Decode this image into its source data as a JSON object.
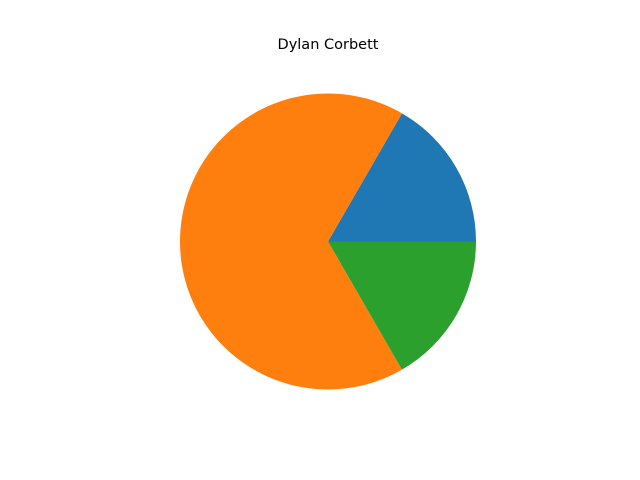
{
  "chart_data": {
    "type": "pie",
    "title": "Dylan Corbett",
    "values": [
      16.67,
      66.67,
      16.67
    ],
    "colors": [
      "#1f77b4",
      "#ff7f0e",
      "#2ca02c"
    ],
    "start_angle_deg": 0,
    "direction": "counterclockwise"
  }
}
